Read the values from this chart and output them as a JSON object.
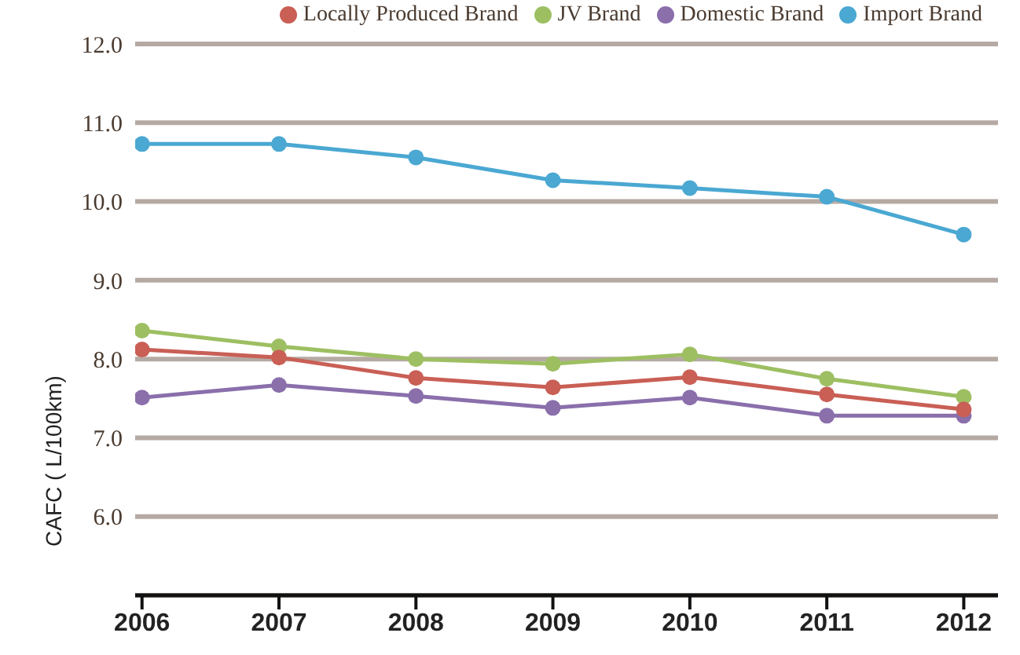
{
  "chart_data": {
    "type": "line",
    "ylabel": "CAFC ( L/100km)",
    "categories": [
      "2006",
      "2007",
      "2008",
      "2009",
      "2010",
      "2011",
      "2012"
    ],
    "series": [
      {
        "name": "Locally Produced Brand",
        "color": "#c95f55",
        "values": [
          8.12,
          8.02,
          7.76,
          7.64,
          7.77,
          7.55,
          7.36
        ]
      },
      {
        "name": "JV Brand",
        "color": "#9dbf62",
        "values": [
          8.36,
          8.16,
          8.0,
          7.94,
          8.06,
          7.75,
          7.52
        ]
      },
      {
        "name": "Domestic Brand",
        "color": "#8a6fab",
        "values": [
          7.51,
          7.67,
          7.53,
          7.38,
          7.51,
          7.28,
          7.28
        ]
      },
      {
        "name": "Import Brand",
        "color": "#4aa8d2",
        "values": [
          10.73,
          10.73,
          10.56,
          10.27,
          10.17,
          10.06,
          9.58
        ]
      }
    ],
    "ylim": [
      5,
      12
    ],
    "yticks": [
      {
        "value": 5,
        "label": null
      },
      {
        "value": 6,
        "label": "6.0"
      },
      {
        "value": 7,
        "label": "7.0"
      },
      {
        "value": 8,
        "label": "8.0"
      },
      {
        "value": 9,
        "label": "9.0"
      },
      {
        "value": 10,
        "label": "10.0"
      },
      {
        "value": 11,
        "label": "11.0"
      },
      {
        "value": 12,
        "label": "12.0"
      }
    ],
    "grid": "y",
    "legend": "top right",
    "marker": "circle",
    "line_style": "solid"
  }
}
